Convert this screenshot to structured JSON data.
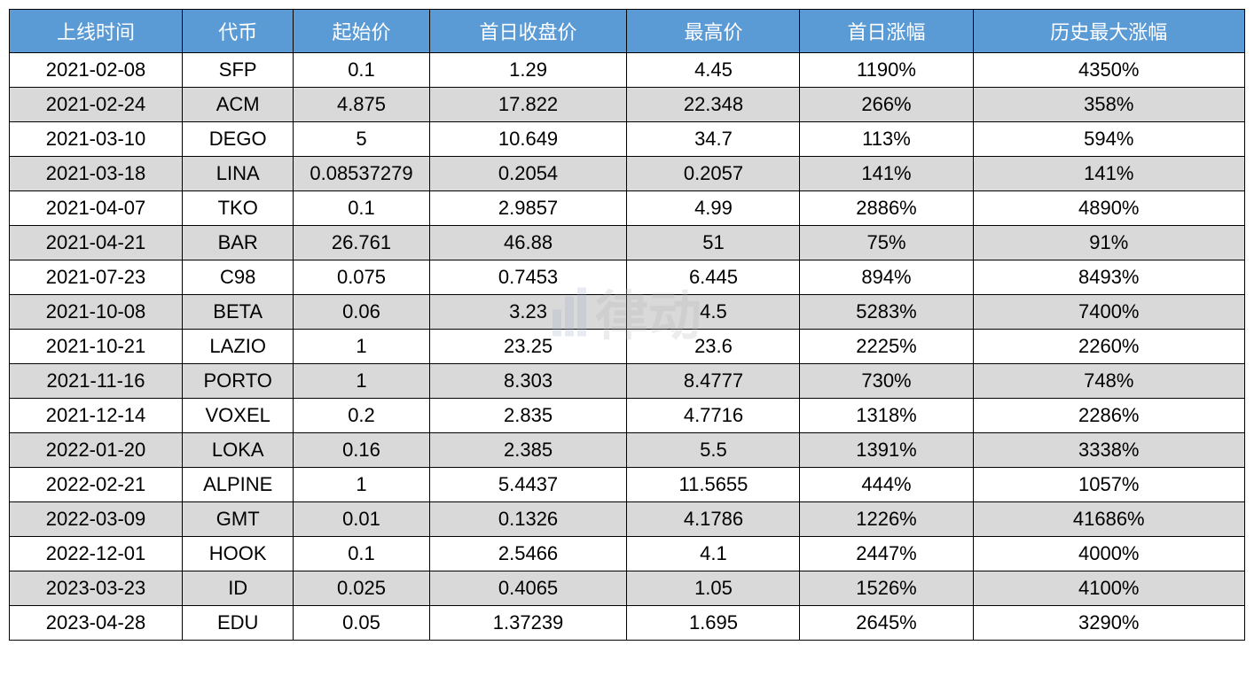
{
  "table": {
    "columns": [
      "上线时间",
      "代币",
      "起始价",
      "首日收盘价",
      "最高价",
      "首日涨幅",
      "历史最大涨幅"
    ],
    "column_widths": [
      "14%",
      "9%",
      "11%",
      "16%",
      "14%",
      "14%",
      "22%"
    ],
    "header_bg_color": "#5b9bd5",
    "header_text_color": "#ffffff",
    "border_color": "#000000",
    "row_odd_bg": "#ffffff",
    "row_even_bg": "#d9d9d9",
    "font_size": 22,
    "rows": [
      [
        "2021-02-08",
        "SFP",
        "0.1",
        "1.29",
        "4.45",
        "1190%",
        "4350%"
      ],
      [
        "2021-02-24",
        "ACM",
        "4.875",
        "17.822",
        "22.348",
        "266%",
        "358%"
      ],
      [
        "2021-03-10",
        "DEGO",
        "5",
        "10.649",
        "34.7",
        "113%",
        "594%"
      ],
      [
        "2021-03-18",
        "LINA",
        "0.08537279",
        "0.2054",
        "0.2057",
        "141%",
        "141%"
      ],
      [
        "2021-04-07",
        "TKO",
        "0.1",
        "2.9857",
        "4.99",
        "2886%",
        "4890%"
      ],
      [
        "2021-04-21",
        "BAR",
        "26.761",
        "46.88",
        "51",
        "75%",
        "91%"
      ],
      [
        "2021-07-23",
        "C98",
        "0.075",
        "0.7453",
        "6.445",
        "894%",
        "8493%"
      ],
      [
        "2021-10-08",
        "BETA",
        "0.06",
        "3.23",
        "4.5",
        "5283%",
        "7400%"
      ],
      [
        "2021-10-21",
        "LAZIO",
        "1",
        "23.25",
        "23.6",
        "2225%",
        "2260%"
      ],
      [
        "2021-11-16",
        "PORTO",
        "1",
        "8.303",
        "8.4777",
        "730%",
        "748%"
      ],
      [
        "2021-12-14",
        "VOXEL",
        "0.2",
        "2.835",
        "4.7716",
        "1318%",
        "2286%"
      ],
      [
        "2022-01-20",
        "LOKA",
        "0.16",
        "2.385",
        "5.5",
        "1391%",
        "3338%"
      ],
      [
        "2022-02-21",
        "ALPINE",
        "1",
        "5.4437",
        "11.5655",
        "444%",
        "1057%"
      ],
      [
        "2022-03-09",
        "GMT",
        "0.01",
        "0.1326",
        "4.1786",
        "1226%",
        "41686%"
      ],
      [
        "2022-12-01",
        "HOOK",
        "0.1",
        "2.5466",
        "4.1",
        "2447%",
        "4000%"
      ],
      [
        "2023-03-23",
        "ID",
        "0.025",
        "0.4065",
        "1.05",
        "1526%",
        "4100%"
      ],
      [
        "2023-04-28",
        "EDU",
        "0.05",
        "1.37239",
        "1.695",
        "2645%",
        "3290%"
      ]
    ]
  },
  "watermark": {
    "text": "律动",
    "color": "rgba(180, 180, 180, 0.25)",
    "font_size": 60
  }
}
